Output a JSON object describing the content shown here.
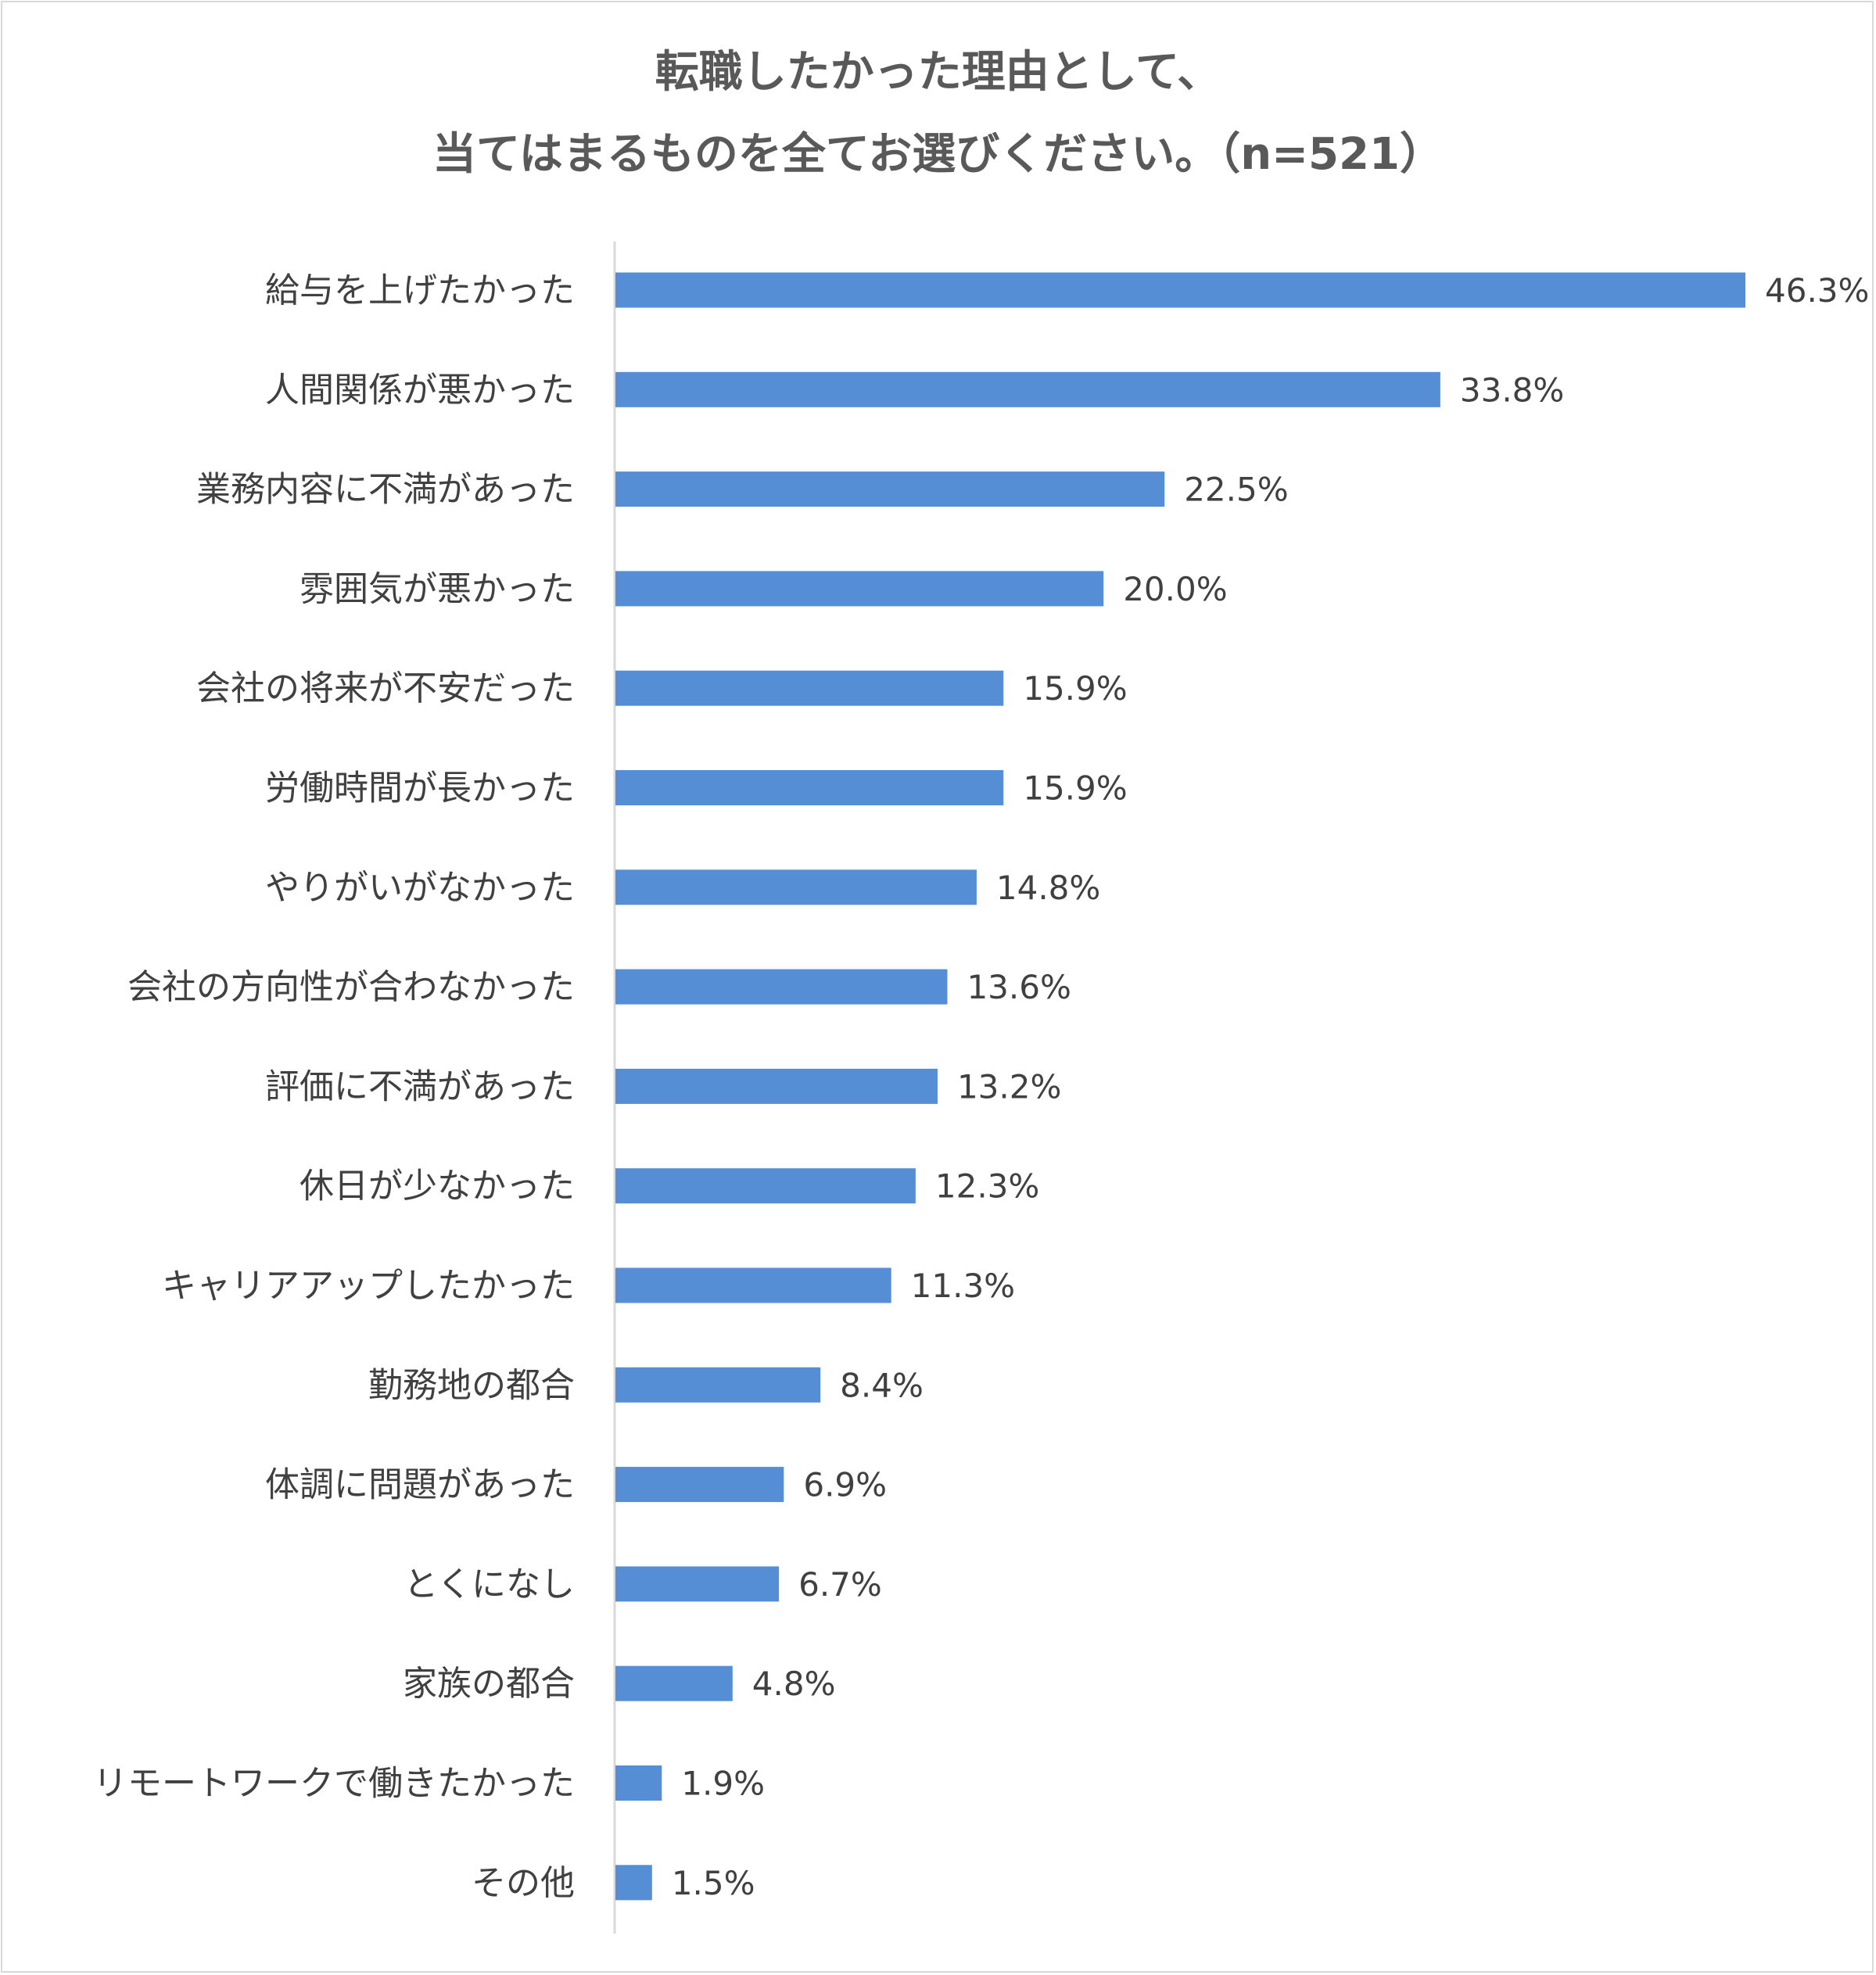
{
  "chart_data": {
    "type": "bar",
    "orientation": "horizontal",
    "title_lines": [
      "転職したかった理由として、",
      "当てはまるものを全てお選びください。（n=521）"
    ],
    "categories": [
      "給与を上げたかった",
      "人間関係が悪かった",
      "業務内容に不満があった",
      "雰囲気が悪かった",
      "会社の将来が不安だった",
      "労働時間が長かった",
      "やりがいがなかった",
      "会社の方向性が合わなかった",
      "評価に不満があった",
      "休日が少なかった",
      "キャリアアップしたかった",
      "勤務地の都合",
      "体調に問題があった",
      "とくになし",
      "家族の都合",
      "リモートワークで働きたかった",
      "その他"
    ],
    "values": [
      46.3,
      33.8,
      22.5,
      20.0,
      15.9,
      15.9,
      14.8,
      13.6,
      13.2,
      12.3,
      11.3,
      8.4,
      6.9,
      6.7,
      4.8,
      1.9,
      1.5
    ],
    "value_labels": [
      "46.3%",
      "33.8%",
      "22.5%",
      "20.0%",
      "15.9%",
      "15.9%",
      "14.8%",
      "13.6%",
      "13.2%",
      "12.3%",
      "11.3%",
      "8.4%",
      "6.9%",
      "6.7%",
      "4.8%",
      "1.9%",
      "1.5%"
    ],
    "unit": "%",
    "bar_color": "#558ED5",
    "grid": false,
    "legend": "none"
  }
}
